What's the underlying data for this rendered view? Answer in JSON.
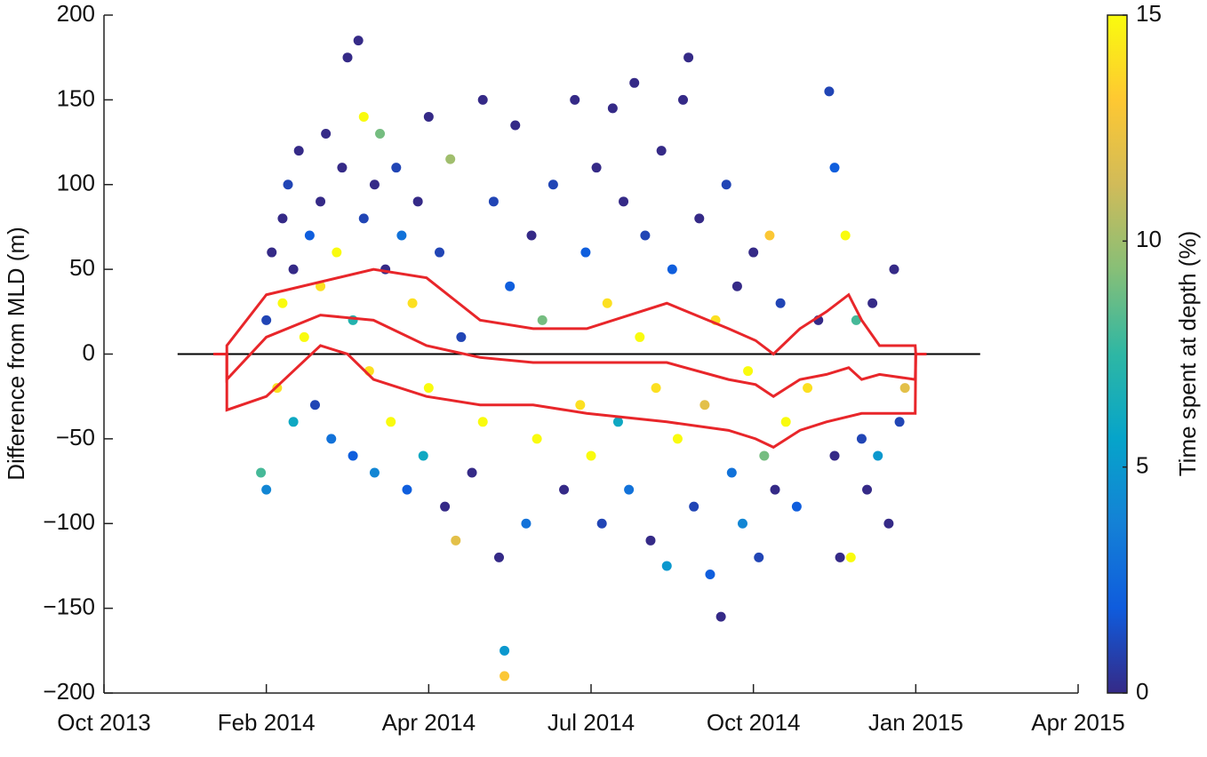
{
  "chart_data": {
    "type": "scatter",
    "ylabel": "Difference from MLD (m)",
    "colorbar_label": "Time spent at depth (%)",
    "xlim": [
      0,
      18
    ],
    "xticks": [
      {
        "value": 0,
        "label": "Oct 2013"
      },
      {
        "value": 3,
        "label": "Feb 2014"
      },
      {
        "value": 6,
        "label": "Apr 2014"
      },
      {
        "value": 9,
        "label": "Jul 2014"
      },
      {
        "value": 12,
        "label": "Oct 2014"
      },
      {
        "value": 15,
        "label": "Jan 2015"
      },
      {
        "value": 18,
        "label": "Apr 2015"
      }
    ],
    "ylim": [
      -200,
      200
    ],
    "yticks": [
      {
        "value": -200,
        "label": "−200"
      },
      {
        "value": -150,
        "label": "−150"
      },
      {
        "value": -100,
        "label": "−100"
      },
      {
        "value": -50,
        "label": "−50"
      },
      0,
      50,
      100,
      150,
      200
    ],
    "clim": [
      0,
      15
    ],
    "cticks": [
      0,
      5,
      10,
      15
    ],
    "colormap": [
      "#352a87",
      "#0f5cdd",
      "#1481d6",
      "#06a4ca",
      "#2eb7a4",
      "#87bf77",
      "#d1bb59",
      "#fec832",
      "#f9fb0e"
    ],
    "x": [
      2.9,
      3.0,
      3.0,
      3.1,
      3.2,
      3.3,
      3.3,
      3.4,
      3.5,
      3.5,
      3.6,
      3.7,
      3.8,
      3.9,
      4.0,
      4.0,
      4.1,
      4.2,
      4.3,
      4.4,
      4.5,
      4.6,
      4.6,
      4.7,
      4.8,
      4.8,
      4.9,
      5.0,
      5.0,
      5.1,
      5.2,
      5.3,
      5.4,
      5.5,
      5.6,
      5.7,
      5.8,
      5.9,
      6.0,
      6.0,
      6.2,
      6.3,
      6.4,
      6.5,
      6.6,
      6.8,
      7.0,
      7.0,
      7.2,
      7.3,
      7.4,
      7.4,
      7.5,
      7.6,
      7.8,
      7.9,
      8.0,
      8.1,
      8.3,
      8.5,
      8.7,
      8.8,
      8.9,
      9.0,
      9.1,
      9.2,
      9.3,
      9.4,
      9.5,
      9.6,
      9.7,
      9.8,
      9.9,
      10.0,
      10.1,
      10.2,
      10.3,
      10.4,
      10.5,
      10.6,
      10.7,
      10.8,
      10.9,
      11.0,
      11.1,
      11.2,
      11.3,
      11.4,
      11.5,
      11.6,
      11.7,
      11.8,
      11.9,
      12.0,
      12.1,
      12.2,
      12.3,
      12.4,
      12.5,
      12.6,
      12.8,
      13.0,
      13.2,
      13.4,
      13.5,
      13.5,
      13.6,
      13.7,
      13.8,
      13.9,
      14.0,
      14.1,
      14.2,
      14.3,
      14.5,
      14.6,
      14.7,
      14.8
    ],
    "values": [
      -70,
      -80,
      20,
      60,
      -20,
      80,
      30,
      100,
      -40,
      50,
      120,
      10,
      70,
      -30,
      90,
      40,
      130,
      -50,
      60,
      110,
      175,
      20,
      -60,
      185,
      140,
      80,
      -10,
      100,
      -70,
      130,
      50,
      -40,
      110,
      70,
      -80,
      30,
      90,
      -60,
      140,
      -20,
      60,
      -90,
      115,
      -110,
      10,
      -70,
      150,
      -40,
      90,
      -120,
      -175,
      -190,
      40,
      135,
      -100,
      70,
      -50,
      20,
      100,
      -80,
      150,
      -30,
      60,
      -60,
      110,
      -100,
      30,
      145,
      -40,
      90,
      -80,
      160,
      10,
      70,
      -110,
      -20,
      120,
      -125,
      50,
      -50,
      150,
      175,
      -90,
      80,
      -30,
      -130,
      20,
      -155,
      100,
      -70,
      40,
      -100,
      -10,
      60,
      -120,
      -60,
      70,
      -80,
      30,
      -40,
      -90,
      -20,
      20,
      155,
      110,
      -60,
      -120,
      70,
      -120,
      20,
      -50,
      -80,
      30,
      -60,
      -100,
      50,
      -40,
      -20
    ],
    "color_values": [
      8,
      4,
      1,
      0,
      14,
      0,
      15,
      1,
      6,
      0,
      0,
      15,
      2,
      1,
      0,
      14,
      0,
      3,
      15,
      0,
      0,
      7,
      2,
      0,
      15,
      1,
      14,
      0,
      4,
      9,
      0,
      15,
      1,
      3,
      2,
      14,
      0,
      6,
      0,
      15,
      1,
      0,
      10,
      12,
      1,
      0,
      0,
      15,
      1,
      0,
      5,
      13,
      2,
      0,
      3,
      0,
      15,
      9,
      1,
      0,
      0,
      14,
      2,
      15,
      0,
      1,
      14,
      0,
      6,
      0,
      3,
      0,
      15,
      1,
      0,
      14,
      0,
      5,
      2,
      15,
      0,
      0,
      1,
      0,
      12,
      2,
      14,
      0,
      1,
      3,
      0,
      4,
      15,
      0,
      1,
      9,
      13,
      0,
      1,
      15,
      2,
      14,
      0,
      1,
      2,
      0,
      0,
      15,
      15,
      8,
      1,
      0,
      0,
      5,
      0,
      0,
      1,
      12
    ],
    "reference_line": {
      "value": 0,
      "x": [
        1.36,
        16.19
      ],
      "color": "#000000"
    },
    "lines": [
      {
        "color": "#e8262a",
        "x": [
          2.02,
          2.27,
          2.27,
          3.0,
          4.98,
          5.96,
          6.95,
          7.93,
          8.92,
          10.4,
          11.54,
          12.04,
          12.37,
          12.86,
          13.35,
          13.76,
          14.0,
          14.33,
          14.99,
          15.0,
          15.2
        ],
        "values": [
          0,
          0,
          5,
          35,
          50,
          45,
          20,
          15,
          15,
          30,
          15,
          8,
          0,
          15,
          25,
          35,
          20,
          5,
          5,
          0,
          0
        ]
      },
      {
        "color": "#e8262a",
        "x": [
          2.02,
          2.27,
          2.27,
          3.0,
          4.0,
          4.98,
          5.96,
          6.95,
          7.93,
          8.92,
          10.4,
          11.54,
          12.04,
          12.37,
          12.86,
          13.35,
          13.76,
          14.0,
          14.33,
          14.99,
          15.0,
          15.2
        ],
        "values": [
          0,
          0,
          -15,
          10,
          23,
          20,
          5,
          -2,
          -5,
          -5,
          -5,
          -15,
          -18,
          -25,
          -15,
          -12,
          -8,
          -15,
          -12,
          -15,
          0,
          0
        ]
      },
      {
        "color": "#e8262a",
        "x": [
          2.02,
          2.27,
          2.27,
          3.0,
          3.5,
          4.0,
          4.5,
          4.98,
          5.96,
          6.95,
          7.93,
          8.92,
          10.4,
          11.54,
          12.04,
          12.37,
          12.86,
          13.35,
          14.0,
          14.33,
          14.99,
          15.0,
          15.2
        ],
        "values": [
          0,
          0,
          -33,
          -25,
          -10,
          5,
          0,
          -15,
          -25,
          -30,
          -30,
          -35,
          -40,
          -45,
          -50,
          -55,
          -45,
          -40,
          -35,
          -35,
          -35,
          0,
          0
        ]
      }
    ]
  }
}
